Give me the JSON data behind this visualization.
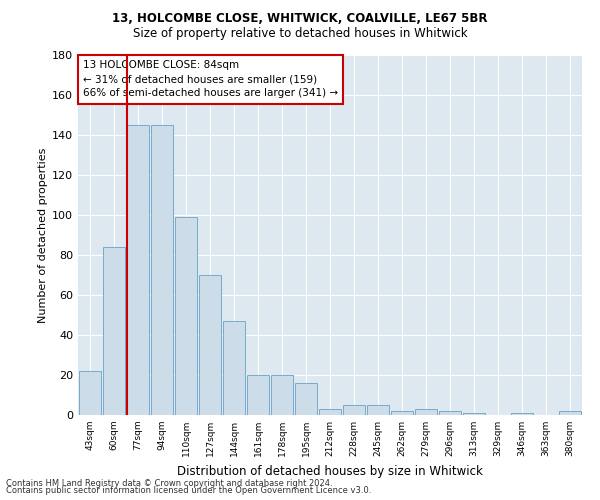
{
  "title1": "13, HOLCOMBE CLOSE, WHITWICK, COALVILLE, LE67 5BR",
  "title2": "Size of property relative to detached houses in Whitwick",
  "xlabel": "Distribution of detached houses by size in Whitwick",
  "ylabel": "Number of detached properties",
  "bar_labels": [
    "43sqm",
    "60sqm",
    "77sqm",
    "94sqm",
    "110sqm",
    "127sqm",
    "144sqm",
    "161sqm",
    "178sqm",
    "195sqm",
    "212sqm",
    "228sqm",
    "245sqm",
    "262sqm",
    "279sqm",
    "296sqm",
    "313sqm",
    "329sqm",
    "346sqm",
    "363sqm",
    "380sqm"
  ],
  "bar_values": [
    22,
    84,
    145,
    145,
    99,
    70,
    47,
    20,
    20,
    16,
    3,
    5,
    5,
    2,
    3,
    2,
    1,
    0,
    1,
    0,
    2
  ],
  "bar_color": "#ccdce8",
  "bar_edge_color": "#7aaac8",
  "vline_bin_index": 2,
  "annotation_title": "13 HOLCOMBE CLOSE: 84sqm",
  "annotation_line1": "← 31% of detached houses are smaller (159)",
  "annotation_line2": "66% of semi-detached houses are larger (341) →",
  "annotation_box_color": "#ffffff",
  "annotation_box_edge": "#cc0000",
  "ylim": [
    0,
    180
  ],
  "yticks": [
    0,
    20,
    40,
    60,
    80,
    100,
    120,
    140,
    160,
    180
  ],
  "bg_color": "#dde8f0",
  "footer1": "Contains HM Land Registry data © Crown copyright and database right 2024.",
  "footer2": "Contains public sector information licensed under the Open Government Licence v3.0."
}
